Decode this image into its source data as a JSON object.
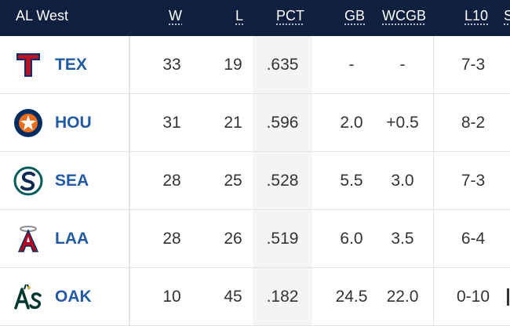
{
  "division": "AL West",
  "columns": {
    "w": "W",
    "l": "L",
    "pct": "PCT",
    "gb": "GB",
    "wcgb": "WCGB",
    "l10": "L10",
    "next": "S"
  },
  "rows": [
    {
      "team": "TEX",
      "logo": "rangers-logo",
      "w": "33",
      "l": "19",
      "pct": ".635",
      "gb": "-",
      "wcgb": "-",
      "l10": "7-3"
    },
    {
      "team": "HOU",
      "logo": "astros-logo",
      "w": "31",
      "l": "21",
      "pct": ".596",
      "gb": "2.0",
      "wcgb": "+0.5",
      "l10": "8-2"
    },
    {
      "team": "SEA",
      "logo": "mariners-logo",
      "w": "28",
      "l": "25",
      "pct": ".528",
      "gb": "5.5",
      "wcgb": "3.0",
      "l10": "7-3"
    },
    {
      "team": "LAA",
      "logo": "angels-logo",
      "w": "28",
      "l": "26",
      "pct": ".519",
      "gb": "6.0",
      "wcgb": "3.5",
      "l10": "6-4"
    },
    {
      "team": "OAK",
      "logo": "athletics-logo",
      "w": "10",
      "l": "45",
      "pct": ".182",
      "gb": "24.5",
      "wcgb": "22.0",
      "l10": "0-10"
    }
  ],
  "colors": {
    "header_bg": "#0f1f40",
    "team_text": "#235aa6",
    "pct_bg": "#f4f4f4"
  }
}
